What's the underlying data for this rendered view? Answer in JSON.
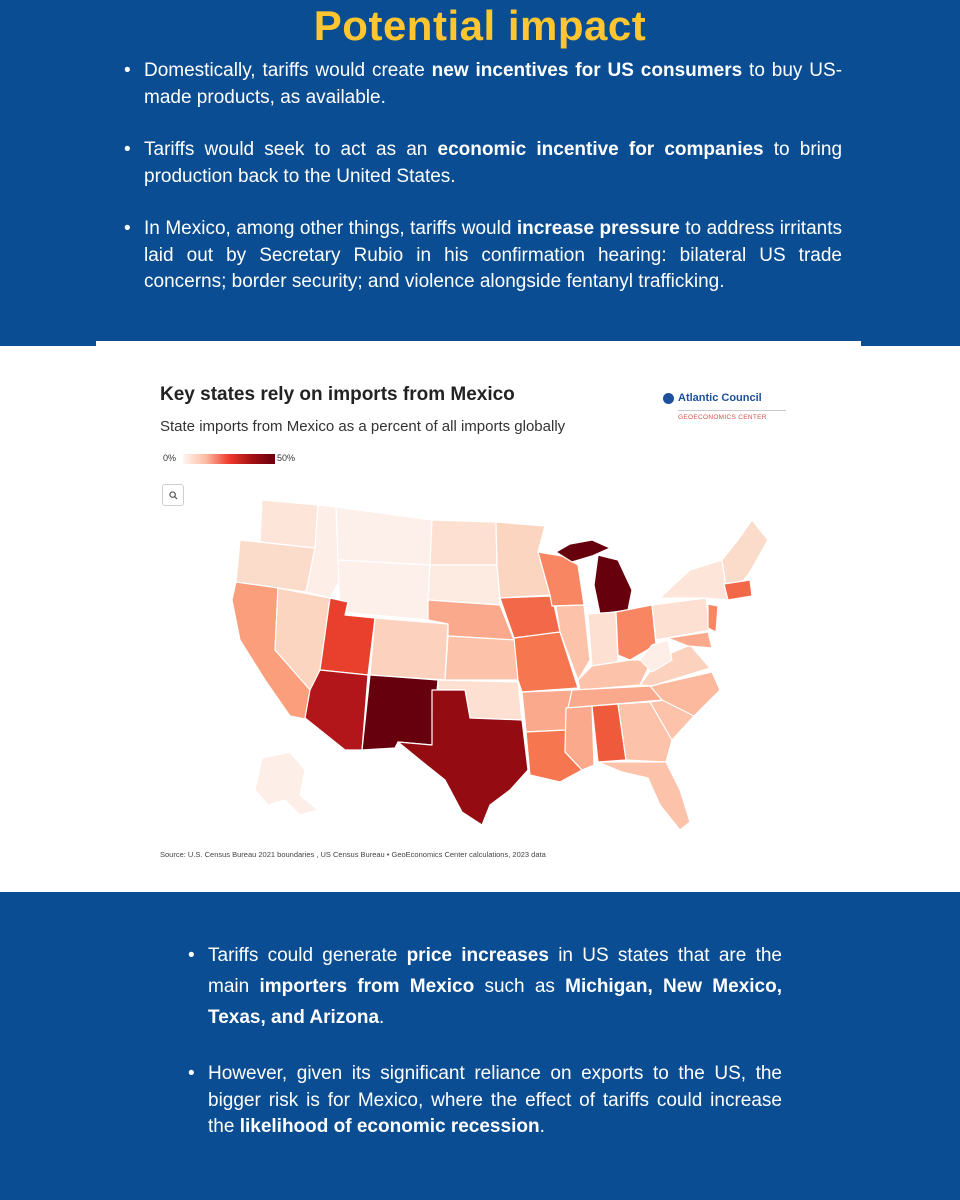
{
  "header": {
    "title": "Potential impact"
  },
  "top_bullets": [
    {
      "before": "Domestically, tariffs would create ",
      "bold": "new incentives for US consumers",
      "after": " to buy US-made products, as available."
    },
    {
      "before": "Tariffs would seek to act as an ",
      "bold": "economic incentive for companies",
      "after": " to bring production back to the United States."
    },
    {
      "before": "In Mexico, among other things, tariffs would ",
      "bold": "increase pressure",
      "after": " to address irritants laid out by Secretary Rubio in his confirmation hearing: bilateral US trade concerns; border security; and violence alongside fentanyl trafficking."
    }
  ],
  "map": {
    "title": "Key states rely on imports from Mexico",
    "subtitle": "State imports from Mexico as a percent of all imports globally",
    "legend": {
      "min": "0%",
      "max": "50%"
    },
    "zoom_icon": "magnifier-icon",
    "brand": {
      "name": "Atlantic Council",
      "sub": "GEOECONOMICS CENTER",
      "icon": "globe-icon"
    },
    "source": "Source: U.S. Census Bureau 2021 boundaries , US Census Bureau • GeoEconomics Center calculations, 2023 data",
    "colors": {
      "lightest": "#fff5f0",
      "light": "#fcd5c1",
      "mid": "#fb9e7c",
      "strong": "#ef5a3c",
      "dark": "#b2161b",
      "darkest": "#67000d"
    }
  },
  "bottom_bullets": {
    "first": {
      "t1": "Tariffs could generate ",
      "b1": "price increases",
      "t2": " in US states that are the main ",
      "b2": "importers from Mexico",
      "t3": " such as ",
      "b3": "Michigan, New Mexico, Texas, and Arizona",
      "t4": "."
    },
    "second": {
      "t1": "However, given its significant reliance on exports to the US, the bigger risk is for Mexico, where the effect of tariffs could increase the ",
      "b1": "likelihood of economic recession",
      "t2": "."
    }
  }
}
